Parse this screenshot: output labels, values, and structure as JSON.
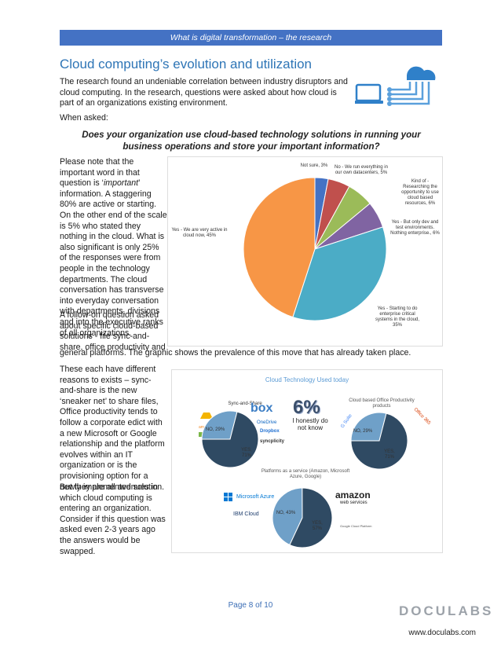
{
  "header": {
    "title": "What is digital transformation – the research"
  },
  "section": {
    "title": "Cloud computing’s evolution and utilization"
  },
  "intro": "The research found an undeniable correlation between industry disruptors and cloud computing.  In the research, questions were asked about how cloud is part of an organizations existing environment.",
  "when_asked": "When asked:",
  "question": "Does your organization use cloud-based technology solutions in running your business operations and store your important information?",
  "para1_before": "Please note that the important word in that question is ‘",
  "para1_em": "important",
  "para1_after": "’ information.  A staggering 80% are active or starting.  On the other end of the scale is 5% who stated they nothing in the cloud.  What is also significant is only 25% of the responses were from people in the technology departments. The cloud conversation has transverse into everyday conversation with departments, divisions and into the executive ranks of all organizations.",
  "para2_col": "A follow-on question asked about specific cloud-based solutions -  file sync-and-share, office productivity and",
  "para2_full": "general platforms.  The graphic shows the prevalence of this move that has already taken place.",
  "para3": "These each have different reasons to exists – sync-and-share is the new ‘sneaker net’ to share files, Office productivity tends to follow a corporate edict with a new Microsoft or Google relationship and the platform evolves within an IT organization or is the provisioning option for a newly implemented solution.",
  "para4": "But they are all avenues in which cloud computing is entering an organization.  Consider if this question was asked even 2-3 years ago the answers would be swapped.",
  "pie1_labels": {
    "not_sure": "Not sure, 3%",
    "no_run": "No - We run everything in our own datacenters, 5%",
    "kind_of": "Kind of - Researching the opportunity to use cloud based resources, 6%",
    "yes_dev": "Yes - But only dev and test environments. Nothing enterprise., 6%",
    "yes_starting": "Yes - Starting to do enterprise critical systems in the cloud, 35%",
    "yes_very": "Yes - We are very active in cloud now, 45%"
  },
  "infographic": {
    "title": "Cloud Technology Used today",
    "sync_title": "Sync-and-Share",
    "sync_no": "NO, 29%",
    "sync_yes": "YES, 71%",
    "big_pct": "6%",
    "big_caption": "I honestly do not know",
    "office_title": "Cloud based Office Productivity products",
    "office_no": "NO, 29%",
    "office_yes": "YES, 71%",
    "platform_title": "Platforms as a service (Amazon, Microsoft Azure, Google)",
    "platform_no": "NO, 43%",
    "platform_yes": "YES, 57%",
    "logos": {
      "box": "box",
      "onedrive": "OneDrive",
      "dropbox": "Dropbox",
      "syncplicity": "syncplicity",
      "azure": "Microsoft Azure",
      "ibm": "IBM Cloud",
      "amazon": "amazon",
      "aws": "web services",
      "gcp": "Google Cloud Platform",
      "o365": "Office 365",
      "gsuite": "G Suite"
    }
  },
  "chart_data": [
    {
      "type": "pie",
      "title": "",
      "categories": [
        "Not sure",
        "No - We run everything in our own datacenters",
        "Kind of - Researching the opportunity to use cloud based resources",
        "Yes - But only dev and test environments. Nothing enterprise.",
        "Yes - Starting to do enterprise critical systems in the cloud",
        "Yes - We are very active in cloud now"
      ],
      "values": [
        3,
        5,
        6,
        6,
        35,
        45
      ],
      "colors": [
        "#4472c4",
        "#c0504d",
        "#9bbb59",
        "#8064a2",
        "#4bacc6",
        "#f79646"
      ]
    },
    {
      "type": "pie",
      "title": "Sync-and-Share",
      "categories": [
        "NO",
        "YES"
      ],
      "values": [
        29,
        71
      ],
      "colors": [
        "#6fa0c8",
        "#2f4a63"
      ]
    },
    {
      "type": "pie",
      "title": "Cloud based Office Productivity products",
      "categories": [
        "NO",
        "YES"
      ],
      "values": [
        29,
        71
      ],
      "colors": [
        "#6fa0c8",
        "#2f4a63"
      ]
    },
    {
      "type": "pie",
      "title": "Platforms as a service (Amazon, Microsoft Azure, Google)",
      "categories": [
        "NO",
        "YES"
      ],
      "values": [
        43,
        57
      ],
      "colors": [
        "#6fa0c8",
        "#2f4a63"
      ]
    }
  ],
  "footer": {
    "page": "Page 8 of 10",
    "brand": "DOCULABS",
    "url": "www.doculabs.com"
  },
  "colors": {
    "accent": "#4472c4",
    "title": "#2e75b6"
  }
}
